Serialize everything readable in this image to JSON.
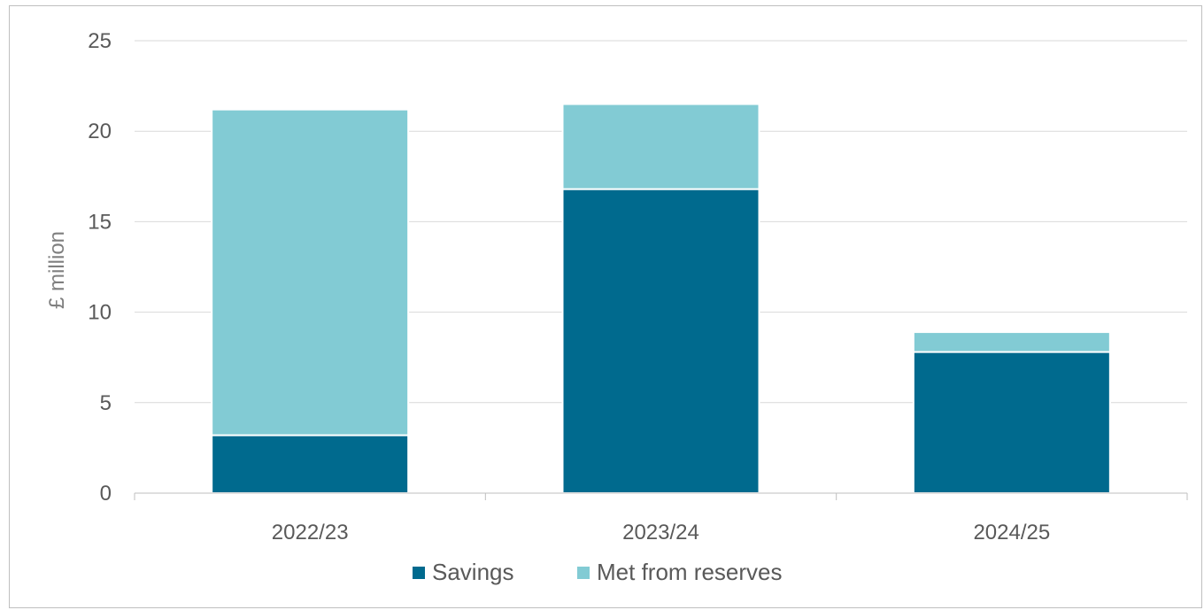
{
  "chart_data": {
    "type": "bar",
    "stacked": true,
    "categories": [
      "2022/23",
      "2023/24",
      "2024/25"
    ],
    "series": [
      {
        "name": "Savings",
        "values": [
          3.2,
          16.8,
          7.8
        ],
        "color": "#006a8e"
      },
      {
        "name": "Met from reserves",
        "values": [
          18.0,
          4.7,
          1.1
        ],
        "color": "#82cbd4"
      }
    ],
    "title": "",
    "xlabel": "",
    "ylabel": "£ million",
    "ylim": [
      0,
      25
    ],
    "yticks": [
      0,
      5,
      10,
      15,
      20,
      25
    ],
    "grid": true,
    "legend_position": "bottom"
  }
}
